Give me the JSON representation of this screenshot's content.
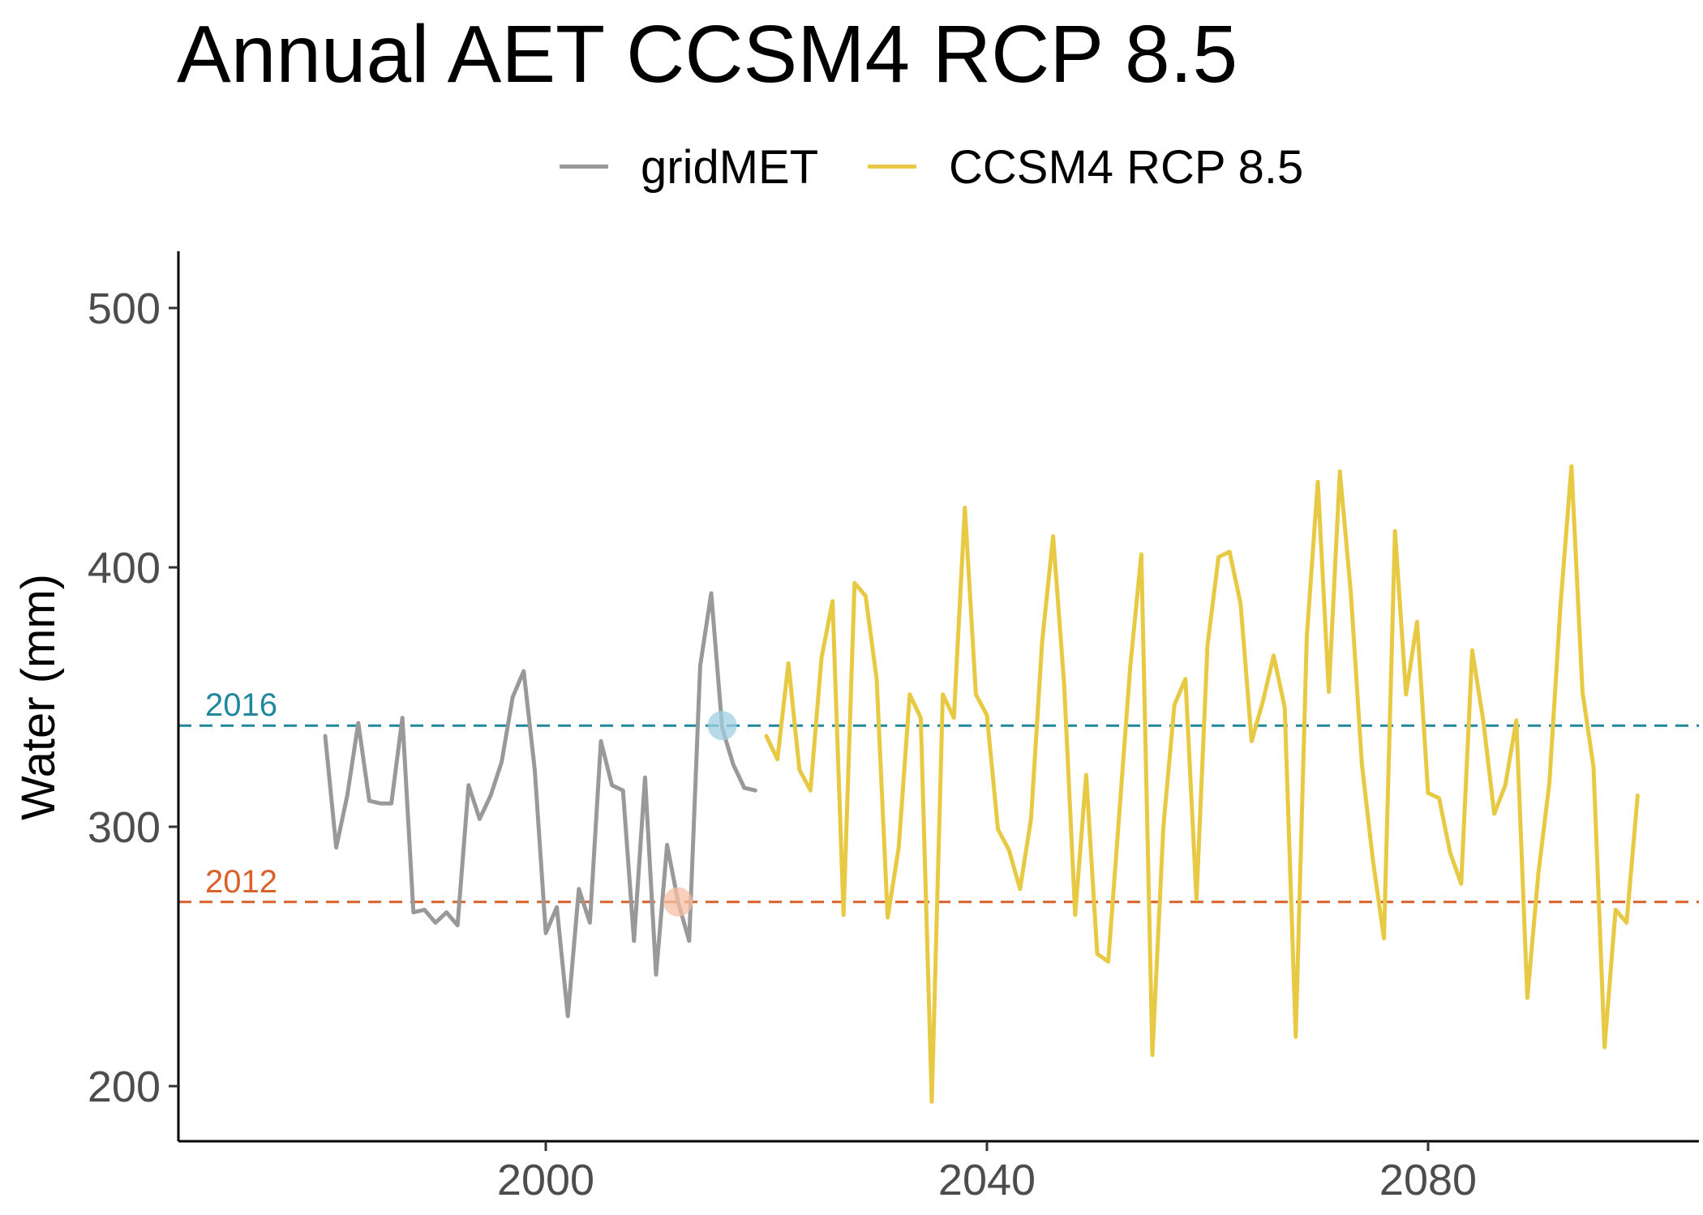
{
  "title": "Annual AET CCSM4 RCP 8.5",
  "legend": [
    {
      "label": "gridMET",
      "color": "#999999"
    },
    {
      "label": "CCSM4 RCP 8.5",
      "color": "#E8C943"
    }
  ],
  "chart_data": {
    "type": "line",
    "title": "Annual AET CCSM4 RCP 8.5",
    "xlabel": "",
    "ylabel": "Water (mm)",
    "xlim": [
      1967,
      2105
    ],
    "ylim": [
      180,
      521
    ],
    "x_ticks": [
      2000,
      2040,
      2080
    ],
    "y_ticks": [
      200,
      300,
      400,
      500
    ],
    "grid": false,
    "legend_position": "top",
    "series": [
      {
        "name": "gridMET",
        "color": "#999999",
        "x": [
          1980,
          1981,
          1982,
          1983,
          1984,
          1985,
          1986,
          1987,
          1988,
          1989,
          1990,
          1991,
          1992,
          1993,
          1994,
          1995,
          1996,
          1997,
          1998,
          1999,
          2000,
          2001,
          2002,
          2003,
          2004,
          2005,
          2006,
          2007,
          2008,
          2009,
          2010,
          2011,
          2012,
          2013,
          2014,
          2015,
          2016,
          2017,
          2018,
          2019
        ],
        "y": [
          335,
          292,
          312,
          340,
          310,
          309,
          309,
          342,
          267,
          268,
          263,
          267,
          262,
          316,
          303,
          312,
          325,
          350,
          360,
          322,
          259,
          269,
          227,
          276,
          263,
          333,
          316,
          314,
          256,
          319,
          243,
          293,
          271,
          256,
          362,
          390,
          338,
          324,
          315,
          314
        ]
      },
      {
        "name": "CCSM4 RCP 8.5",
        "color": "#E8C943",
        "x": [
          2020,
          2021,
          2022,
          2023,
          2024,
          2025,
          2026,
          2027,
          2028,
          2029,
          2030,
          2031,
          2032,
          2033,
          2034,
          2035,
          2036,
          2037,
          2038,
          2039,
          2040,
          2041,
          2042,
          2043,
          2044,
          2045,
          2046,
          2047,
          2048,
          2049,
          2050,
          2051,
          2052,
          2053,
          2054,
          2055,
          2056,
          2057,
          2058,
          2059,
          2060,
          2061,
          2062,
          2063,
          2064,
          2065,
          2066,
          2067,
          2068,
          2069,
          2070,
          2071,
          2072,
          2073,
          2074,
          2075,
          2076,
          2077,
          2078,
          2079,
          2080,
          2081,
          2082,
          2083,
          2084,
          2085,
          2086,
          2087,
          2088,
          2089,
          2090,
          2091,
          2092,
          2093,
          2094,
          2095,
          2096,
          2097,
          2098,
          2099
        ],
        "y": [
          335,
          326,
          363,
          322,
          314,
          365,
          387,
          266,
          394,
          389,
          357,
          265,
          292,
          351,
          342,
          194,
          351,
          342,
          423,
          351,
          343,
          299,
          291,
          276,
          303,
          371,
          412,
          355,
          266,
          320,
          251,
          248,
          305,
          362,
          405,
          212,
          300,
          347,
          357,
          272,
          370,
          404,
          406,
          386,
          333,
          348,
          366,
          346,
          219,
          373,
          433,
          352,
          437,
          390,
          324,
          287,
          257,
          414,
          351,
          379,
          313,
          311,
          290,
          278,
          368,
          341,
          305,
          316,
          341,
          234,
          282,
          317,
          385,
          439,
          352,
          323,
          215,
          268,
          263,
          312
        ]
      }
    ],
    "reference_lines": [
      {
        "label": "2016",
        "y": 339,
        "color": "#20879F"
      },
      {
        "label": "2012",
        "y": 271,
        "color": "#D9612A"
      }
    ],
    "highlight_points": [
      {
        "x": 2016,
        "y": 339,
        "color": "#9FCFE2"
      },
      {
        "x": 2012,
        "y": 271,
        "color": "#F4BFA3"
      }
    ]
  }
}
